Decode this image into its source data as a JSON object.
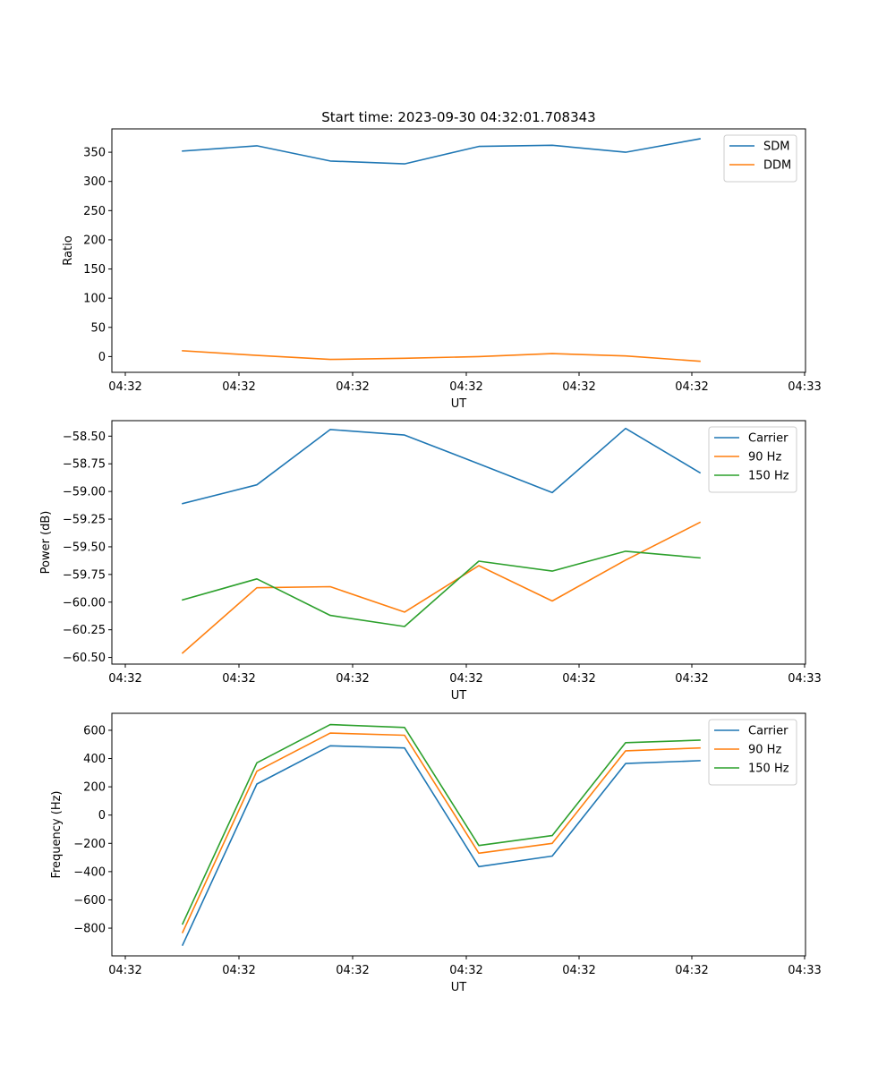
{
  "chart_data": [
    {
      "type": "line",
      "title": "Start time: 2023-09-30 04:32:01.708343",
      "xlabel": "UT",
      "ylabel": "Ratio",
      "ylim": [
        -27,
        390
      ],
      "yticks": [
        "0",
        "50",
        "100",
        "150",
        "200",
        "250",
        "300",
        "350"
      ],
      "ytick_values": [
        0,
        50,
        100,
        150,
        200,
        250,
        300,
        350
      ],
      "xticks": [
        "04:32",
        "04:32",
        "04:32",
        "04:32",
        "04:32",
        "04:32",
        "04:33"
      ],
      "legend_position": "top-right",
      "series": [
        {
          "name": "SDM",
          "color": "#1f77b4",
          "values": [
            352,
            361,
            335,
            330,
            360,
            362,
            350,
            373
          ]
        },
        {
          "name": "DDM",
          "color": "#ff7f0e",
          "values": [
            10,
            2,
            -5,
            -3,
            0,
            5,
            1,
            -8
          ]
        }
      ]
    },
    {
      "type": "line",
      "title": "",
      "xlabel": "UT",
      "ylabel": "Power (dB)",
      "ylim": [
        -60.56,
        -58.36
      ],
      "yticks": [
        "−58.50",
        "−58.75",
        "−59.00",
        "−59.25",
        "−59.50",
        "−59.75",
        "−60.00",
        "−60.25",
        "−60.50"
      ],
      "ytick_values": [
        -58.5,
        -58.75,
        -59.0,
        -59.25,
        -59.5,
        -59.75,
        -60.0,
        -60.25,
        -60.5
      ],
      "xticks": [
        "04:32",
        "04:32",
        "04:32",
        "04:32",
        "04:32",
        "04:32",
        "04:33"
      ],
      "legend_position": "top-right",
      "series": [
        {
          "name": "Carrier",
          "color": "#1f77b4",
          "values": [
            -59.11,
            -58.94,
            -58.44,
            -58.49,
            -58.75,
            -59.01,
            -58.43,
            -58.83
          ]
        },
        {
          "name": "90 Hz",
          "color": "#ff7f0e",
          "values": [
            -60.46,
            -59.87,
            -59.86,
            -60.09,
            -59.67,
            -59.99,
            -59.62,
            -59.28
          ]
        },
        {
          "name": "150 Hz",
          "color": "#2ca02c",
          "values": [
            -59.98,
            -59.79,
            -60.12,
            -60.22,
            -59.63,
            -59.72,
            -59.54,
            -59.6
          ]
        }
      ]
    },
    {
      "type": "line",
      "title": "",
      "xlabel": "UT",
      "ylabel": "Frequency (Hz)",
      "ylim": [
        -996,
        720
      ],
      "yticks": [
        "−800",
        "−600",
        "−400",
        "−200",
        "0",
        "200",
        "400",
        "600"
      ],
      "ytick_values": [
        -800,
        -600,
        -400,
        -200,
        0,
        200,
        400,
        600
      ],
      "xticks": [
        "04:32",
        "04:32",
        "04:32",
        "04:32",
        "04:32",
        "04:32",
        "04:33"
      ],
      "legend_position": "top-right",
      "series": [
        {
          "name": "Carrier",
          "color": "#1f77b4",
          "values": [
            -920,
            220,
            490,
            475,
            -365,
            -290,
            365,
            385
          ]
        },
        {
          "name": "90 Hz",
          "color": "#ff7f0e",
          "values": [
            -830,
            310,
            580,
            565,
            -270,
            -200,
            455,
            475
          ]
        },
        {
          "name": "150 Hz",
          "color": "#2ca02c",
          "values": [
            -770,
            370,
            640,
            620,
            -215,
            -145,
            512,
            530
          ]
        }
      ]
    }
  ]
}
